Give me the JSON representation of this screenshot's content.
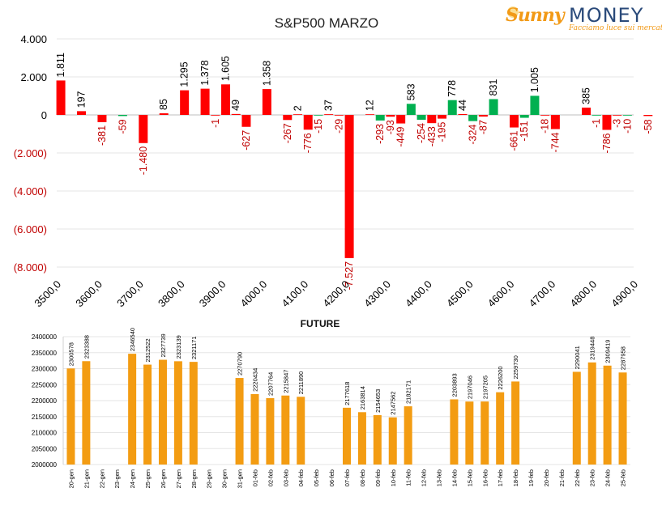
{
  "logo": {
    "brand_part1": "Sunny",
    "brand_part2": "MONEY",
    "tagline": "Facciamo luce sui mercati"
  },
  "colors": {
    "positive": "#00b050",
    "negative": "#ff0000",
    "future_bar": "#f39c12",
    "axis_text_negative": "#c00000",
    "gridline": "#e6e6e6"
  },
  "chart_data": [
    {
      "type": "bar",
      "title": "S&P500 MARZO",
      "xlabel": "",
      "ylabel": "",
      "ylim": [
        -8000,
        4000
      ],
      "y_ticks": [
        4000,
        2000,
        0,
        -2000,
        -4000,
        -6000,
        -8000
      ],
      "y_tick_labels": [
        "4.000",
        "2.000",
        "0",
        "(2.000)",
        "(4.000)",
        "(6.000)",
        "(8.000)"
      ],
      "x_ticks": [
        "3500,0",
        "3600,0",
        "3700,0",
        "3800,0",
        "3900,0",
        "4000,0",
        "4100,0",
        "4200,0",
        "4300,0",
        "4400,0",
        "4500,0",
        "4600,0",
        "4700,0",
        "4800,0",
        "4900,0"
      ],
      "x_tick_values": [
        3500,
        3600,
        3700,
        3800,
        3900,
        4000,
        4100,
        4200,
        4300,
        4400,
        4500,
        4600,
        4700,
        4800,
        4900
      ],
      "grid": true,
      "series": [
        {
          "values": [
            {
              "x": 3510,
              "y": 1811,
              "label": "1.811"
            },
            {
              "x": 3560,
              "y": 197,
              "label": "197"
            },
            {
              "x": 3610,
              "y": -381,
              "label": "-381"
            },
            {
              "x": 3660,
              "y": -59,
              "label": "-59"
            },
            {
              "x": 3710,
              "y": -1480,
              "label": "-1.480"
            },
            {
              "x": 3760,
              "y": 85,
              "label": "85"
            },
            {
              "x": 3810,
              "y": 1295,
              "label": "1.295"
            },
            {
              "x": 3860,
              "y": 1378,
              "label": "1.378"
            },
            {
              "x": 3885,
              "y": -1,
              "label": "-1"
            },
            {
              "x": 3910,
              "y": 1605,
              "label": "1.605"
            },
            {
              "x": 3935,
              "y": 49,
              "label": "49"
            },
            {
              "x": 3960,
              "y": -627,
              "label": "-627"
            },
            {
              "x": 4010,
              "y": 1358,
              "label": "1.358"
            },
            {
              "x": 4060,
              "y": -267,
              "label": "-267"
            },
            {
              "x": 4085,
              "y": 2,
              "label": "2"
            },
            {
              "x": 4110,
              "y": -776,
              "label": "-776"
            },
            {
              "x": 4135,
              "y": -15,
              "label": "-15"
            },
            {
              "x": 4160,
              "y": 37,
              "label": "37"
            },
            {
              "x": 4185,
              "y": -29,
              "label": "-29"
            },
            {
              "x": 4210,
              "y": -7527,
              "label": "-7.527"
            },
            {
              "x": 4260,
              "y": 12,
              "label": "12"
            },
            {
              "x": 4285,
              "y": -293,
              "label": "-293"
            },
            {
              "x": 4310,
              "y": -93,
              "label": "-93"
            },
            {
              "x": 4335,
              "y": -449,
              "label": "-449"
            },
            {
              "x": 4360,
              "y": 583,
              "label": "583"
            },
            {
              "x": 4385,
              "y": -254,
              "label": "-254"
            },
            {
              "x": 4410,
              "y": -433,
              "label": "-433"
            },
            {
              "x": 4435,
              "y": -195,
              "label": "-195"
            },
            {
              "x": 4460,
              "y": 778,
              "label": "778"
            },
            {
              "x": 4485,
              "y": 44,
              "label": "44"
            },
            {
              "x": 4510,
              "y": -324,
              "label": "-324"
            },
            {
              "x": 4535,
              "y": -87,
              "label": "-87"
            },
            {
              "x": 4560,
              "y": 831,
              "label": "831"
            },
            {
              "x": 4610,
              "y": -661,
              "label": "-661"
            },
            {
              "x": 4635,
              "y": -151,
              "label": "-151"
            },
            {
              "x": 4660,
              "y": 1005,
              "label": "1.005"
            },
            {
              "x": 4685,
              "y": -18,
              "label": "-18"
            },
            {
              "x": 4710,
              "y": -744,
              "label": "-744"
            },
            {
              "x": 4785,
              "y": 385,
              "label": "385"
            },
            {
              "x": 4810,
              "y": -1,
              "label": "-1"
            },
            {
              "x": 4835,
              "y": -786,
              "label": "-786"
            },
            {
              "x": 4860,
              "y": -3,
              "label": "-3"
            },
            {
              "x": 4885,
              "y": -10,
              "label": "-10"
            },
            {
              "x": 4935,
              "y": -58,
              "label": "-58"
            }
          ]
        }
      ]
    },
    {
      "type": "bar",
      "title": "FUTURE",
      "xlabel": "",
      "ylabel": "",
      "ylim": [
        2000000,
        2400000
      ],
      "y_ticks": [
        2000000,
        2050000,
        2100000,
        2150000,
        2200000,
        2250000,
        2300000,
        2350000,
        2400000
      ],
      "y_tick_labels": [
        "2000000",
        "2050000",
        "2100000",
        "2150000",
        "2200000",
        "2250000",
        "2300000",
        "2350000",
        "2400000"
      ],
      "grid": true,
      "categories": [
        "20-gen",
        "21-gen",
        "22-gen",
        "23-gen",
        "24-gen",
        "25-gen",
        "26-gen",
        "27-gen",
        "28-gen",
        "29-gen",
        "30-gen",
        "31-gen",
        "01-feb",
        "02-feb",
        "03-feb",
        "04-feb",
        "05-feb",
        "06-feb",
        "07-feb",
        "08-feb",
        "09-feb",
        "10-feb",
        "11-feb",
        "12-feb",
        "13-feb",
        "14-feb",
        "15-feb",
        "16-feb",
        "17-feb",
        "18-feb",
        "19-feb",
        "20-feb",
        "21-feb",
        "22-feb",
        "23-feb",
        "24-feb",
        "25-feb"
      ],
      "series": [
        {
          "values": [
            2300578,
            2323388,
            null,
            null,
            2346540,
            2312522,
            2327739,
            2323139,
            2321171,
            null,
            null,
            2270790,
            2220434,
            2207764,
            2215847,
            2211890,
            null,
            null,
            2177618,
            2163814,
            2154653,
            2147562,
            2182171,
            null,
            null,
            2203893,
            2197046,
            2197205,
            2226200,
            2259730,
            null,
            null,
            null,
            2290041,
            2319448,
            2309419,
            2287958
          ]
        }
      ]
    }
  ]
}
